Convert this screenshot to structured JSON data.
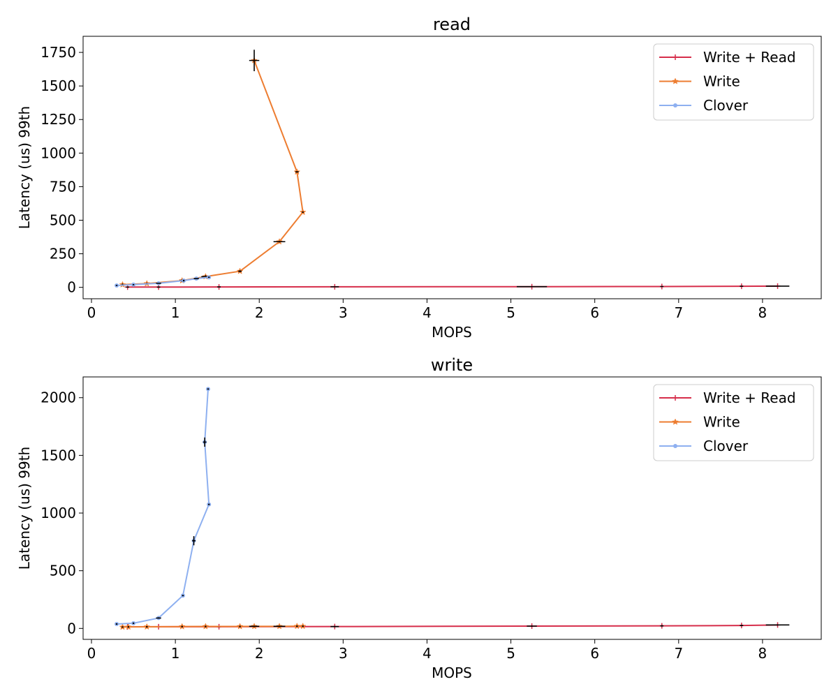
{
  "chart_data": [
    {
      "type": "line",
      "title": "read",
      "xlabel": "MOPS",
      "ylabel": "Latency (us) 99th",
      "xlim": [
        -0.1,
        8.7
      ],
      "ylim": [
        -85,
        1870
      ],
      "xticks": [
        0,
        1,
        2,
        3,
        4,
        5,
        6,
        7,
        8
      ],
      "yticks": [
        0,
        250,
        500,
        750,
        1000,
        1250,
        1500,
        1750
      ],
      "grid": false,
      "legend_position": "top-right",
      "series": [
        {
          "name": "Write + Read",
          "color": "#d62d4a",
          "marker": "plus",
          "points": [
            [
              0.43,
              2
            ],
            [
              0.8,
              2
            ],
            [
              1.52,
              3
            ],
            [
              2.9,
              4
            ],
            [
              5.25,
              5
            ],
            [
              6.8,
              6
            ],
            [
              7.75,
              8
            ],
            [
              8.18,
              9
            ]
          ],
          "errors": [
            [
              0.43,
              0.02,
              2
            ],
            [
              0.8,
              0.02,
              2
            ],
            [
              1.52,
              0.02,
              4
            ],
            [
              2.9,
              0.05,
              4
            ],
            [
              5.25,
              0.18,
              4
            ],
            [
              6.8,
              0.02,
              3
            ],
            [
              7.75,
              0.02,
              3
            ],
            [
              8.18,
              0.14,
              3
            ]
          ]
        },
        {
          "name": "Write",
          "color": "#ed7d31",
          "marker": "star",
          "points": [
            [
              0.37,
              20
            ],
            [
              0.66,
              28
            ],
            [
              1.08,
              50
            ],
            [
              1.36,
              80
            ],
            [
              1.77,
              120
            ],
            [
              2.24,
              340
            ],
            [
              2.52,
              560
            ],
            [
              2.45,
              860
            ],
            [
              1.94,
              1690
            ]
          ],
          "errors": [
            [
              0.37,
              0.01,
              8
            ],
            [
              0.66,
              0.01,
              6
            ],
            [
              1.08,
              0.03,
              10
            ],
            [
              1.36,
              0.05,
              10
            ],
            [
              1.77,
              0.02,
              6
            ],
            [
              2.24,
              0.07,
              5
            ],
            [
              2.52,
              0.01,
              5
            ],
            [
              2.45,
              0.02,
              5
            ],
            [
              1.94,
              0.06,
              80
            ]
          ]
        },
        {
          "name": "Clover",
          "color": "#8eb0f0",
          "marker": "dot",
          "points": [
            [
              0.3,
              14
            ],
            [
              0.5,
              20
            ],
            [
              0.8,
              30
            ],
            [
              1.1,
              50
            ],
            [
              1.25,
              65
            ],
            [
              1.4,
              75
            ]
          ],
          "errors": [
            [
              0.3,
              0.01,
              3
            ],
            [
              0.5,
              0.01,
              3
            ],
            [
              0.8,
              0.03,
              3
            ],
            [
              1.1,
              0.01,
              6
            ],
            [
              1.25,
              0.03,
              4
            ],
            [
              1.4,
              0.01,
              4
            ]
          ]
        }
      ]
    },
    {
      "type": "line",
      "title": "write",
      "xlabel": "MOPS",
      "ylabel": "Latency (us) 99th",
      "xlim": [
        -0.1,
        8.7
      ],
      "ylim": [
        -95,
        2180
      ],
      "xticks": [
        0,
        1,
        2,
        3,
        4,
        5,
        6,
        7,
        8
      ],
      "yticks": [
        0,
        500,
        1000,
        1500,
        2000
      ],
      "grid": false,
      "legend_position": "top-right",
      "series": [
        {
          "name": "Write + Read",
          "color": "#d62d4a",
          "marker": "plus",
          "points": [
            [
              0.43,
              14
            ],
            [
              0.8,
              15
            ],
            [
              1.52,
              15
            ],
            [
              2.9,
              16
            ],
            [
              5.25,
              20
            ],
            [
              6.8,
              22
            ],
            [
              7.75,
              25
            ],
            [
              8.18,
              30
            ]
          ],
          "errors": [
            [
              0.43,
              0.02,
              6
            ],
            [
              0.8,
              0.02,
              6
            ],
            [
              1.52,
              0.02,
              6
            ],
            [
              2.9,
              0.05,
              6
            ],
            [
              5.25,
              0.06,
              6
            ],
            [
              6.8,
              0.02,
              6
            ],
            [
              7.75,
              0.02,
              6
            ],
            [
              8.18,
              0.14,
              6
            ]
          ]
        },
        {
          "name": "Write",
          "color": "#ed7d31",
          "marker": "star",
          "points": [
            [
              0.37,
              12
            ],
            [
              0.44,
              13
            ],
            [
              0.66,
              14
            ],
            [
              1.08,
              16
            ],
            [
              1.36,
              17
            ],
            [
              1.77,
              17
            ],
            [
              1.94,
              18
            ],
            [
              2.24,
              18
            ],
            [
              2.45,
              19
            ],
            [
              2.52,
              19
            ]
          ],
          "errors": [
            [
              0.37,
              0.01,
              6
            ],
            [
              0.44,
              0.01,
              6
            ],
            [
              0.66,
              0.01,
              6
            ],
            [
              1.08,
              0.01,
              6
            ],
            [
              1.36,
              0.01,
              6
            ],
            [
              1.77,
              0.01,
              6
            ],
            [
              1.94,
              0.06,
              6
            ],
            [
              2.24,
              0.07,
              6
            ],
            [
              2.45,
              0.01,
              6
            ],
            [
              2.52,
              0.01,
              6
            ]
          ]
        },
        {
          "name": "Clover",
          "color": "#8eb0f0",
          "marker": "dot",
          "points": [
            [
              0.3,
              38
            ],
            [
              0.5,
              45
            ],
            [
              0.8,
              90
            ],
            [
              1.09,
              285
            ],
            [
              1.22,
              760
            ],
            [
              1.4,
              1075
            ],
            [
              1.35,
              1615
            ],
            [
              1.39,
              2075
            ]
          ],
          "errors": [
            [
              0.3,
              0.01,
              6
            ],
            [
              0.5,
              0.01,
              6
            ],
            [
              0.8,
              0.03,
              6
            ],
            [
              1.09,
              0.01,
              6
            ],
            [
              1.22,
              0.02,
              40
            ],
            [
              1.4,
              0.01,
              6
            ],
            [
              1.35,
              0.02,
              40
            ],
            [
              1.39,
              0.01,
              6
            ]
          ]
        }
      ]
    }
  ]
}
